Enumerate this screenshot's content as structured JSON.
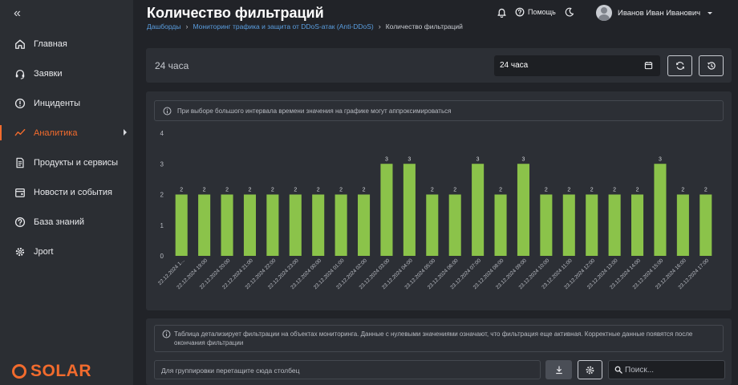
{
  "sidebar": {
    "items": [
      {
        "label": "Главная",
        "icon": "home-icon"
      },
      {
        "label": "Заявки",
        "icon": "headset-icon"
      },
      {
        "label": "Инциденты",
        "icon": "alert-circle-icon"
      },
      {
        "label": "Аналитика",
        "icon": "analytics-icon",
        "active": true
      },
      {
        "label": "Продукты и сервисы",
        "icon": "document-icon"
      },
      {
        "label": "Новости и события",
        "icon": "calendar-icon"
      },
      {
        "label": "База знаний",
        "icon": "help-circle-icon"
      },
      {
        "label": "Jport",
        "icon": "settings-icon"
      }
    ],
    "logo_text": "SOLAR"
  },
  "header": {
    "title": "Количество фильтраций",
    "breadcrumbs": [
      "Дашборды",
      "Мониторинг трафика и защита от DDoS-атак (Anti-DDoS)",
      "Количество фильтраций"
    ],
    "help_label": "Помощь",
    "user_name": "Иванов Иван Иванович"
  },
  "period": {
    "label": "24 часа",
    "selected": "24 часа"
  },
  "chart_info": "При выборе большого интервала времени значения на графике могут аппроксимироваться",
  "chart_data": {
    "type": "bar",
    "categories": [
      "22.12.2024 1...",
      "22.12.2024 19:00",
      "22.12.2024 20:00",
      "22.12.2024 21:00",
      "22.12.2024 22:00",
      "22.12.2024 23:00",
      "23.12.2024 00:00",
      "23.12.2024 01:00",
      "23.12.2024 02:00",
      "23.12.2024 03:00",
      "23.12.2024 04:00",
      "23.12.2024 05:00",
      "23.12.2024 06:00",
      "23.12.2024 07:00",
      "23.12.2024 08:00",
      "23.12.2024 09:00",
      "23.12.2024 10:00",
      "23.12.2024 11:00",
      "23.12.2024 12:00",
      "23.12.2024 13:00",
      "23.12.2024 14:00",
      "23.12.2024 15:00",
      "23.12.2024 16:00",
      "23.12.2024 17:00"
    ],
    "values": [
      2,
      2,
      2,
      2,
      2,
      2,
      2,
      2,
      2,
      3,
      3,
      2,
      2,
      3,
      2,
      3,
      2,
      2,
      2,
      2,
      2,
      3,
      2,
      2
    ],
    "yticks": [
      "0",
      "1",
      "2",
      "3",
      "4"
    ],
    "ylim": [
      0,
      4
    ],
    "bar_color": "#8bc34a",
    "title": "",
    "xlabel": "",
    "ylabel": ""
  },
  "table": {
    "info": "Таблица детализирует фильтрации на объектах мониторинга. Данные с нулевыми значениями означают, что фильтрация еще активная. Корректные данные появятся после окончания фильтрации",
    "group_placeholder": "Для группировки перетащите сюда столбец",
    "search_placeholder": "Поиск..."
  },
  "colors": {
    "accent": "#f26b2d",
    "link": "#5a9ee0",
    "bar": "#8bc34a"
  }
}
